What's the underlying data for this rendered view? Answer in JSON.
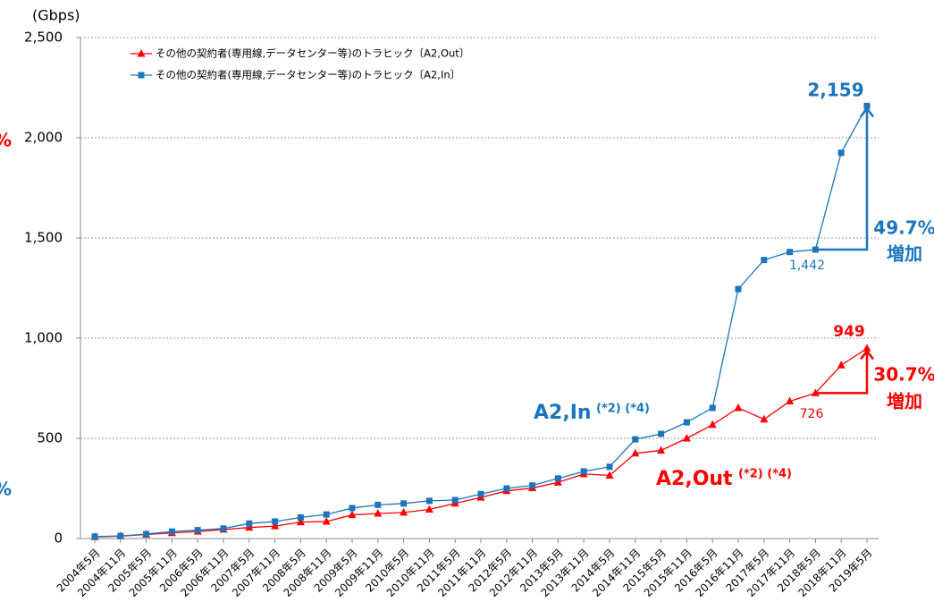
{
  "chart_data": {
    "type": "line",
    "y_label": "(Gbps)",
    "categories": [
      "2004年5月",
      "2004年11月",
      "2005年5月",
      "2005年11月",
      "2006年5月",
      "2006年11月",
      "2007年5月",
      "2007年11月",
      "2008年5月",
      "2008年11月",
      "2009年5月",
      "2009年11月",
      "2010年5月",
      "2010年11月",
      "2011年5月",
      "2011年11月",
      "2012年5月",
      "2012年11月",
      "2013年5月",
      "2013年11月",
      "2014年5月",
      "2014年11月",
      "2015年5月",
      "2015年11月",
      "2016年5月",
      "2016年11月",
      "2017年5月",
      "2017年11月",
      "2018年5月",
      "2018年11月",
      "2019年5月"
    ],
    "series": [
      {
        "name": "その他の契約者(専用線,データセンター等)のトラヒック〔A2,Out〕",
        "color": "#ff0000",
        "marker": "triangle",
        "values": [
          8,
          12,
          20,
          28,
          35,
          45,
          55,
          62,
          82,
          85,
          118,
          125,
          130,
          145,
          175,
          205,
          238,
          252,
          280,
          322,
          315,
          425,
          440,
          500,
          568,
          652,
          595,
          685,
          726,
          865,
          949
        ]
      },
      {
        "name": "その他の契約者(専用線,データセンター等)のトラヒック〔A2,In〕",
        "color": "#1a75bc",
        "marker": "square",
        "values": [
          10,
          13,
          22,
          35,
          42,
          50,
          75,
          85,
          105,
          120,
          152,
          168,
          175,
          188,
          192,
          222,
          250,
          265,
          300,
          335,
          358,
          495,
          522,
          580,
          652,
          1245,
          1390,
          1430,
          1442,
          1925,
          2159
        ]
      }
    ],
    "ylim": [
      0,
      2500
    ],
    "yticks": [
      0,
      500,
      {
        "value": 1000,
        "label": "1,000"
      },
      {
        "value": 1500,
        "label": "1,500"
      },
      {
        "value": 2000,
        "label": "2,000"
      },
      {
        "value": 2500,
        "label": "2,500"
      }
    ],
    "grid": true,
    "legend": "top-left",
    "annotations": [
      {
        "text": "2,159",
        "color": "#1a75bc"
      },
      {
        "text": "1,442",
        "color": "#1a75bc"
      },
      {
        "text": "949",
        "color": "#ff0000"
      },
      {
        "text": "726",
        "color": "#ff0000"
      },
      {
        "text": "49.7%",
        "color": "#1a75bc"
      },
      {
        "text": "増加",
        "color": "#1a75bc"
      },
      {
        "text": "30.7%",
        "color": "#ff0000"
      },
      {
        "text": "増加",
        "color": "#ff0000"
      },
      {
        "text": "A2,In",
        "color": "#1a75bc"
      },
      {
        "text": "(*2) (*4)",
        "color": "#1a75bc"
      },
      {
        "text": "A2,Out",
        "color": "#ff0000"
      },
      {
        "text": "(*2) (*4)",
        "color": "#ff0000"
      },
      {
        "text": "%",
        "color": "#ff0000"
      },
      {
        "text": "%",
        "color": "#1a75bc"
      }
    ]
  }
}
